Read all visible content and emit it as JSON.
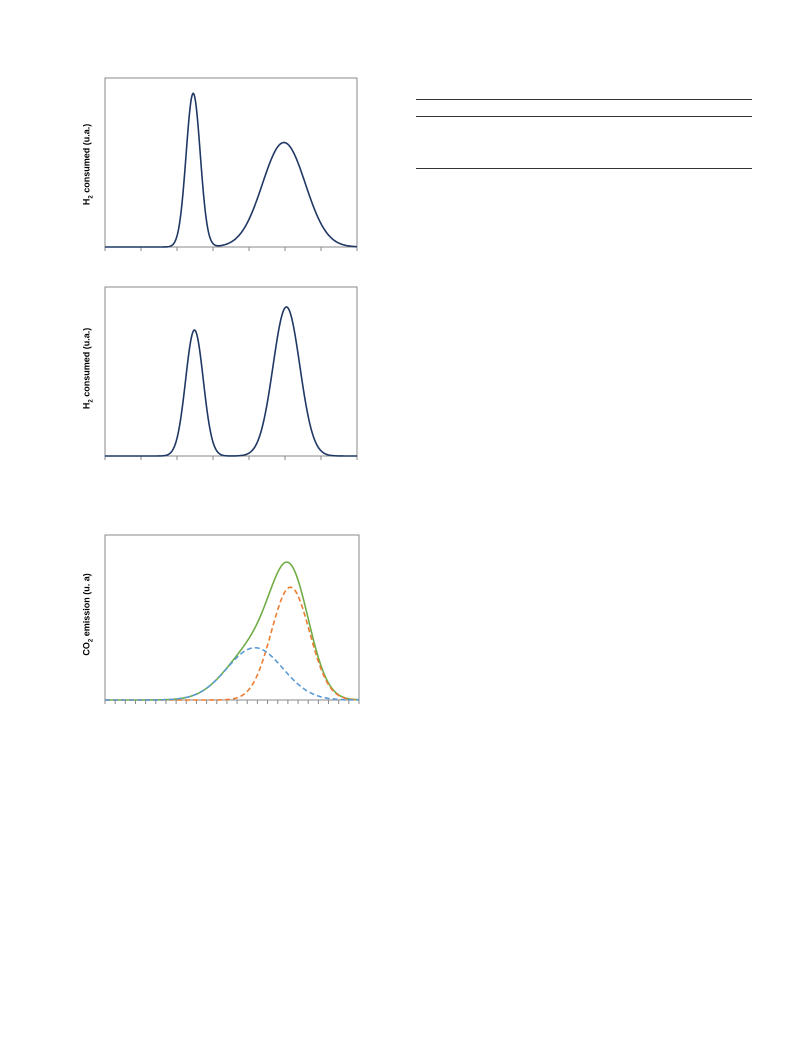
{
  "colors": {
    "frame": "#888888",
    "curve_main": "#1f3864",
    "curve_total": "#70ad47",
    "curve_orange": "#ed7d31",
    "curve_blue": "#5b9bd5"
  },
  "chart_data": [
    {
      "type": "line",
      "ylabel_prefix": "H",
      "ylabel_sub": "2",
      "ylabel_suffix": " consumed (u.a.)",
      "xlim": [
        0,
        100
      ],
      "ylim": [
        0,
        1.1
      ],
      "series": [
        {
          "peaks": [
            {
              "center": 35,
              "sigma": 2.8,
              "height": 1.0
            },
            {
              "center": 71,
              "sigma": 8.5,
              "height": 0.68
            }
          ]
        }
      ]
    },
    {
      "type": "line",
      "ylabel_prefix": "H",
      "ylabel_sub": "2",
      "ylabel_suffix": " consumed (u.a.)",
      "xlim": [
        0,
        100
      ],
      "ylim": [
        0,
        1.1
      ],
      "series": [
        {
          "peaks": [
            {
              "center": 35.5,
              "sigma": 3.5,
              "height": 0.82
            },
            {
              "center": 72,
              "sigma": 5.3,
              "height": 0.97
            }
          ]
        }
      ]
    },
    {
      "type": "line",
      "ylabel_prefix": "CO",
      "ylabel_sub": "2",
      "ylabel_suffix": " emission (u. a)",
      "xlim": [
        0,
        100
      ],
      "ylim": [
        0,
        1.2
      ],
      "series": [
        {
          "style": "solid",
          "color_key": "curve_total",
          "peaks": [
            {
              "center": 59,
              "sigma": 11,
              "height": 0.38
            },
            {
              "center": 73,
              "sigma": 7.5,
              "height": 0.82
            }
          ]
        },
        {
          "style": "dashed",
          "color_key": "curve_orange",
          "peaks": [
            {
              "center": 73,
              "sigma": 7.5,
              "height": 0.82
            }
          ]
        },
        {
          "style": "dashed",
          "color_key": "curve_blue",
          "peaks": [
            {
              "center": 59,
              "sigma": 11,
              "height": 0.38
            }
          ]
        }
      ]
    }
  ]
}
